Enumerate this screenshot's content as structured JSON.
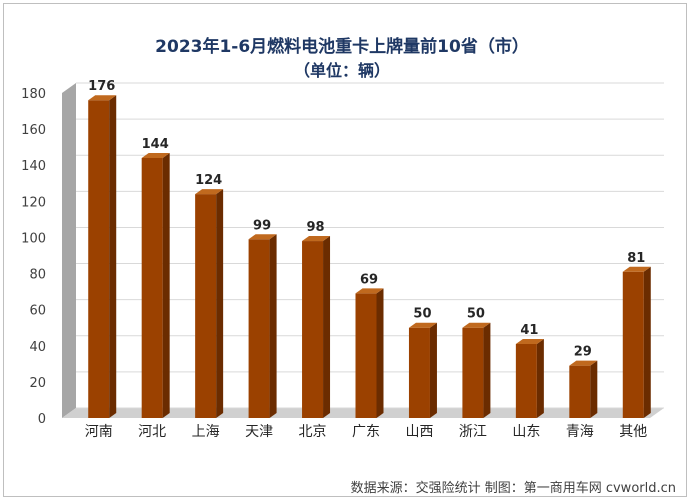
{
  "chart_data": {
    "type": "bar",
    "title": "2023年1-6月燃料电池重卡上牌量前10省（市）",
    "subtitle": "（单位：辆）",
    "categories": [
      "河南",
      "河北",
      "上海",
      "天津",
      "北京",
      "广东",
      "山西",
      "浙江",
      "山东",
      "青海",
      "其他"
    ],
    "values": [
      176,
      144,
      124,
      99,
      98,
      69,
      50,
      50,
      41,
      29,
      81
    ],
    "ylim": [
      0,
      180
    ],
    "yticks": [
      0,
      20,
      40,
      60,
      80,
      100,
      120,
      140,
      160,
      180
    ],
    "grid": true,
    "bar_style": "3d",
    "colors": {
      "bar_front": "#9b4100",
      "bar_side": "#6b2c00",
      "bar_top": "#c0691e",
      "wall": "#a6a6a6",
      "grid": "#d9d9d9"
    }
  },
  "source": "数据来源：交强险统计   制图：第一商用车网 cvworld.cn"
}
